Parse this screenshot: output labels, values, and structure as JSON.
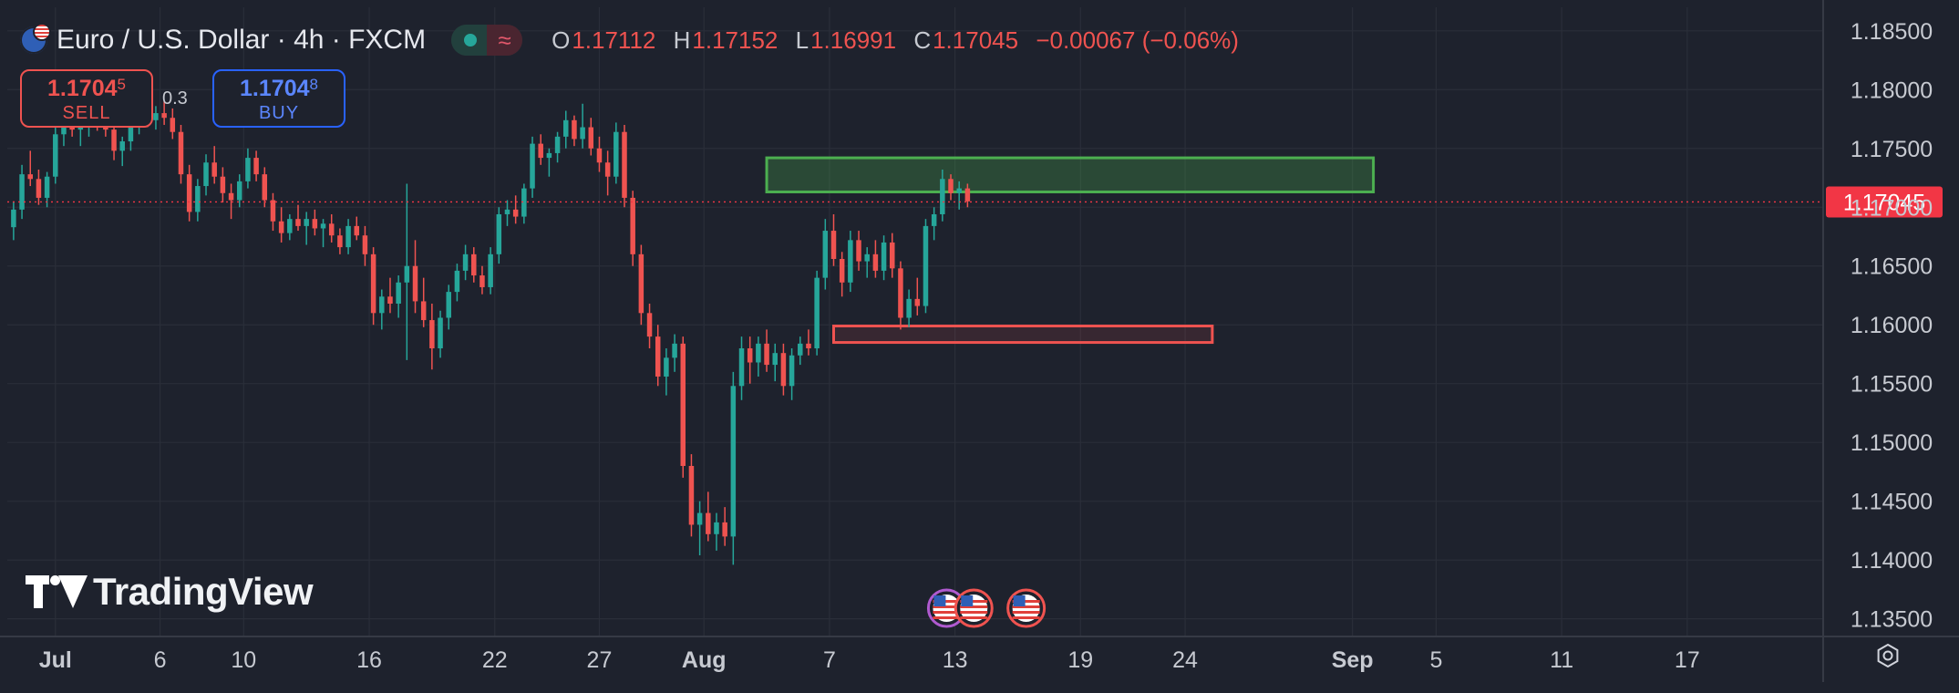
{
  "header": {
    "symbol_icon": "eur-usd-flag-icon",
    "title": "Euro / U.S. Dollar · 4h · FXCM",
    "status_icons": [
      "market-open-dot-icon",
      "delayed-data-icon"
    ],
    "status_glyph": "≈",
    "ohlc": {
      "o_key": "O",
      "o": "1.17112",
      "h_key": "H",
      "h": "1.17152",
      "l_key": "L",
      "l": "1.16991",
      "c_key": "C",
      "c": "1.17045",
      "change": "−0.00067 (−0.06%)"
    }
  },
  "trade": {
    "sell_price_main": "1.1704",
    "sell_price_sup": "5",
    "sell_label": "SELL",
    "spread": "0.3",
    "buy_price_main": "1.1704",
    "buy_price_sup": "8",
    "buy_label": "BUY"
  },
  "watermark": {
    "text": "TradingView",
    "icon": "tradingview-logo-icon"
  },
  "colors": {
    "background": "#1e222d",
    "up": "#26a69a",
    "down": "#ef5350",
    "grid": "#2a2e39",
    "resistance_zone": "#4caf50",
    "support_zone": "#ef5350",
    "price_label": "#f23645"
  },
  "chart_data": {
    "type": "candlestick",
    "title": "Euro / U.S. Dollar · 4h · FXCM",
    "y_axis_ticks": [
      "1.18500",
      "1.18000",
      "1.17500",
      "1.17000",
      "1.16500",
      "1.16000",
      "1.15500",
      "1.15000",
      "1.14500",
      "1.14000",
      "1.13500"
    ],
    "ylim": [
      1.1335,
      1.187
    ],
    "x_axis_ticks": [
      {
        "label": "Jul",
        "day": 0,
        "bold": true
      },
      {
        "label": "6",
        "day": 5
      },
      {
        "label": "10",
        "day": 9
      },
      {
        "label": "16",
        "day": 15
      },
      {
        "label": "22",
        "day": 21
      },
      {
        "label": "27",
        "day": 26
      },
      {
        "label": "Aug",
        "day": 31,
        "bold": true
      },
      {
        "label": "7",
        "day": 37
      },
      {
        "label": "13",
        "day": 43
      },
      {
        "label": "19",
        "day": 49
      },
      {
        "label": "24",
        "day": 54
      },
      {
        "label": "Sep",
        "day": 62,
        "bold": true
      },
      {
        "label": "5",
        "day": 66
      },
      {
        "label": "11",
        "day": 72
      },
      {
        "label": "17",
        "day": 78
      }
    ],
    "xlim": [
      -2.3,
      84.5
    ],
    "last_price": 1.17045,
    "last_price_label": "1.17045",
    "grid": true,
    "zones": [
      {
        "name": "resistance",
        "day_start": 34,
        "day_end": 63,
        "price_top": 1.1742,
        "price_bottom": 1.1713,
        "color": "#4caf50"
      },
      {
        "name": "support",
        "day_start": 37.2,
        "day_end": 55.3,
        "price_top": 1.1599,
        "price_bottom": 1.1585,
        "color": "#ef5350"
      }
    ],
    "events": [
      {
        "day": 42.6,
        "icon": "us-flag-icon"
      },
      {
        "day": 43.9,
        "icon": "us-flag-icon"
      },
      {
        "day": 46.4,
        "icon": "us-flag-icon"
      }
    ],
    "candles": [
      [
        -2.0,
        1.1683,
        1.1705,
        1.1672,
        1.1698
      ],
      [
        -1.6,
        1.1698,
        1.1736,
        1.169,
        1.1728
      ],
      [
        -1.2,
        1.1728,
        1.1748,
        1.1718,
        1.1724
      ],
      [
        -0.8,
        1.1724,
        1.1732,
        1.1702,
        1.1708
      ],
      [
        -0.4,
        1.1708,
        1.173,
        1.17,
        1.1726
      ],
      [
        0.0,
        1.1726,
        1.177,
        1.172,
        1.1762
      ],
      [
        0.4,
        1.1762,
        1.1786,
        1.1752,
        1.1778
      ],
      [
        0.8,
        1.1778,
        1.1784,
        1.176,
        1.1766
      ],
      [
        1.2,
        1.1766,
        1.1776,
        1.1752,
        1.177
      ],
      [
        1.6,
        1.177,
        1.1788,
        1.176,
        1.1782
      ],
      [
        2.0,
        1.1782,
        1.179,
        1.1765,
        1.1772
      ],
      [
        2.4,
        1.1772,
        1.1785,
        1.176,
        1.1766
      ],
      [
        2.8,
        1.1766,
        1.1776,
        1.174,
        1.1748
      ],
      [
        3.2,
        1.1748,
        1.176,
        1.1735,
        1.1756
      ],
      [
        3.6,
        1.1756,
        1.1776,
        1.1748,
        1.177
      ],
      [
        4.0,
        1.177,
        1.1782,
        1.1762,
        1.1778
      ],
      [
        4.4,
        1.1778,
        1.179,
        1.1768,
        1.1774
      ],
      [
        4.8,
        1.1774,
        1.1786,
        1.1766,
        1.178
      ],
      [
        5.2,
        1.178,
        1.179,
        1.177,
        1.1776
      ],
      [
        5.6,
        1.1776,
        1.1784,
        1.1758,
        1.1764
      ],
      [
        6.0,
        1.1764,
        1.177,
        1.172,
        1.1728
      ],
      [
        6.4,
        1.1728,
        1.1736,
        1.1688,
        1.1696
      ],
      [
        6.8,
        1.1696,
        1.1724,
        1.1688,
        1.1718
      ],
      [
        7.2,
        1.1718,
        1.1745,
        1.171,
        1.1738
      ],
      [
        7.6,
        1.1738,
        1.1752,
        1.172,
        1.1726
      ],
      [
        8.0,
        1.1726,
        1.1734,
        1.1704,
        1.1712
      ],
      [
        8.4,
        1.1712,
        1.172,
        1.169,
        1.1706
      ],
      [
        8.8,
        1.1706,
        1.1728,
        1.17,
        1.1722
      ],
      [
        9.2,
        1.1722,
        1.175,
        1.1716,
        1.1742
      ],
      [
        9.6,
        1.1742,
        1.1748,
        1.1722,
        1.1728
      ],
      [
        10.0,
        1.1728,
        1.1734,
        1.17,
        1.1706
      ],
      [
        10.4,
        1.1706,
        1.1712,
        1.168,
        1.1688
      ],
      [
        10.8,
        1.1688,
        1.17,
        1.167,
        1.1678
      ],
      [
        11.2,
        1.1678,
        1.1694,
        1.1672,
        1.169
      ],
      [
        11.6,
        1.169,
        1.1702,
        1.168,
        1.1684
      ],
      [
        12.0,
        1.1684,
        1.1696,
        1.1668,
        1.169
      ],
      [
        12.4,
        1.169,
        1.1698,
        1.1676,
        1.1682
      ],
      [
        12.8,
        1.1682,
        1.169,
        1.1666,
        1.1686
      ],
      [
        13.2,
        1.1686,
        1.1694,
        1.167,
        1.1676
      ],
      [
        13.6,
        1.1676,
        1.1682,
        1.166,
        1.1666
      ],
      [
        14.0,
        1.1666,
        1.169,
        1.166,
        1.1684
      ],
      [
        14.4,
        1.1684,
        1.1692,
        1.1672,
        1.1676
      ],
      [
        14.8,
        1.1676,
        1.1684,
        1.165,
        1.166
      ],
      [
        15.2,
        1.166,
        1.1666,
        1.16,
        1.161
      ],
      [
        15.6,
        1.161,
        1.163,
        1.1596,
        1.1624
      ],
      [
        16.0,
        1.1624,
        1.164,
        1.161,
        1.1618
      ],
      [
        16.4,
        1.1618,
        1.1642,
        1.1606,
        1.1636
      ],
      [
        16.8,
        1.1636,
        1.172,
        1.157,
        1.165
      ],
      [
        17.2,
        1.165,
        1.1672,
        1.161,
        1.162
      ],
      [
        17.6,
        1.162,
        1.164,
        1.1598,
        1.1604
      ],
      [
        18.0,
        1.1604,
        1.1618,
        1.1562,
        1.158
      ],
      [
        18.4,
        1.158,
        1.1612,
        1.1572,
        1.1606
      ],
      [
        18.8,
        1.1606,
        1.1634,
        1.1596,
        1.1628
      ],
      [
        19.2,
        1.1628,
        1.1652,
        1.162,
        1.1646
      ],
      [
        19.6,
        1.1646,
        1.1668,
        1.1638,
        1.166
      ],
      [
        20.0,
        1.166,
        1.1666,
        1.1636,
        1.1642
      ],
      [
        20.4,
        1.1642,
        1.165,
        1.1626,
        1.1632
      ],
      [
        20.8,
        1.1632,
        1.1666,
        1.1626,
        1.166
      ],
      [
        21.2,
        1.166,
        1.17,
        1.1652,
        1.1694
      ],
      [
        21.6,
        1.1694,
        1.1706,
        1.1684,
        1.1698
      ],
      [
        22.0,
        1.1698,
        1.171,
        1.1686,
        1.1692
      ],
      [
        22.4,
        1.1692,
        1.172,
        1.1686,
        1.1716
      ],
      [
        22.8,
        1.1716,
        1.176,
        1.1708,
        1.1754
      ],
      [
        23.2,
        1.1754,
        1.1762,
        1.1736,
        1.1742
      ],
      [
        23.6,
        1.1742,
        1.175,
        1.1726,
        1.1746
      ],
      [
        24.0,
        1.1746,
        1.1764,
        1.1738,
        1.176
      ],
      [
        24.4,
        1.176,
        1.1782,
        1.175,
        1.1774
      ],
      [
        24.8,
        1.1774,
        1.1778,
        1.1752,
        1.1758
      ],
      [
        25.2,
        1.1758,
        1.1788,
        1.175,
        1.1768
      ],
      [
        25.6,
        1.1768,
        1.1776,
        1.1744,
        1.175
      ],
      [
        26.0,
        1.175,
        1.176,
        1.173,
        1.1738
      ],
      [
        26.4,
        1.1738,
        1.1748,
        1.171,
        1.1726
      ],
      [
        26.8,
        1.1726,
        1.1772,
        1.172,
        1.1764
      ],
      [
        27.2,
        1.1764,
        1.177,
        1.17,
        1.1708
      ],
      [
        27.6,
        1.1708,
        1.1714,
        1.165,
        1.166
      ],
      [
        28.0,
        1.166,
        1.1668,
        1.16,
        1.161
      ],
      [
        28.4,
        1.161,
        1.1618,
        1.158,
        1.159
      ],
      [
        28.8,
        1.159,
        1.16,
        1.1548,
        1.1556
      ],
      [
        29.2,
        1.1556,
        1.158,
        1.154,
        1.1572
      ],
      [
        29.6,
        1.1572,
        1.1592,
        1.156,
        1.1584
      ],
      [
        30.0,
        1.1584,
        1.159,
        1.147,
        1.148
      ],
      [
        30.4,
        1.148,
        1.149,
        1.142,
        1.143
      ],
      [
        30.8,
        1.143,
        1.145,
        1.1404,
        1.144
      ],
      [
        31.2,
        1.144,
        1.1458,
        1.1416,
        1.1422
      ],
      [
        31.6,
        1.1422,
        1.144,
        1.1408,
        1.1432
      ],
      [
        32.0,
        1.1432,
        1.1445,
        1.1412,
        1.142
      ],
      [
        32.4,
        1.142,
        1.156,
        1.1396,
        1.1548
      ],
      [
        32.8,
        1.1548,
        1.159,
        1.1536,
        1.158
      ],
      [
        33.2,
        1.158,
        1.159,
        1.155,
        1.1568
      ],
      [
        33.6,
        1.1568,
        1.159,
        1.1556,
        1.1584
      ],
      [
        34.0,
        1.1584,
        1.1596,
        1.156,
        1.1566
      ],
      [
        34.4,
        1.1566,
        1.1584,
        1.1552,
        1.1576
      ],
      [
        34.8,
        1.1576,
        1.1584,
        1.154,
        1.1548
      ],
      [
        35.2,
        1.1548,
        1.158,
        1.1536,
        1.1574
      ],
      [
        35.6,
        1.1574,
        1.159,
        1.1566,
        1.1584
      ],
      [
        36.0,
        1.1584,
        1.1596,
        1.1574,
        1.158
      ],
      [
        36.4,
        1.158,
        1.1646,
        1.1574,
        1.164
      ],
      [
        36.8,
        1.164,
        1.169,
        1.163,
        1.168
      ],
      [
        37.2,
        1.168,
        1.1694,
        1.165,
        1.1656
      ],
      [
        37.6,
        1.1656,
        1.1662,
        1.1624,
        1.1636
      ],
      [
        38.0,
        1.1636,
        1.168,
        1.1628,
        1.1672
      ],
      [
        38.4,
        1.1672,
        1.168,
        1.1646,
        1.1654
      ],
      [
        38.8,
        1.1654,
        1.1666,
        1.164,
        1.166
      ],
      [
        39.2,
        1.166,
        1.1672,
        1.164,
        1.1646
      ],
      [
        39.6,
        1.1646,
        1.1676,
        1.1638,
        1.167
      ],
      [
        40.0,
        1.167,
        1.1678,
        1.164,
        1.1648
      ],
      [
        40.4,
        1.1648,
        1.1654,
        1.1596,
        1.1606
      ],
      [
        40.8,
        1.1606,
        1.163,
        1.1598,
        1.1622
      ],
      [
        41.2,
        1.1622,
        1.164,
        1.1608,
        1.1616
      ],
      [
        41.6,
        1.1616,
        1.169,
        1.161,
        1.1684
      ],
      [
        42.0,
        1.1684,
        1.17,
        1.1672,
        1.1694
      ],
      [
        42.4,
        1.1694,
        1.1732,
        1.1688,
        1.1724
      ],
      [
        42.8,
        1.1724,
        1.1728,
        1.1706,
        1.1712
      ],
      [
        43.2,
        1.1712,
        1.1722,
        1.1698,
        1.1716
      ],
      [
        43.6,
        1.1716,
        1.172,
        1.17,
        1.1705
      ]
    ]
  }
}
